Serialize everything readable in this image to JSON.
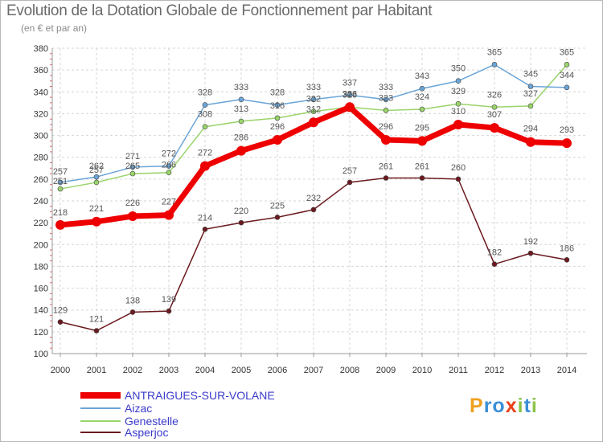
{
  "header": {
    "title": "Evolution de la Dotation Globale de Fonctionnement par Habitant",
    "subtitle": "(en € et par an)"
  },
  "chart_data": {
    "type": "line",
    "title": "Evolution de la Dotation Globale de Fonctionnement par Habitant",
    "subtitle": "(en € et par an)",
    "xlabel": "",
    "ylabel": "",
    "ylim": [
      100,
      380
    ],
    "y_ticks": [
      100,
      120,
      140,
      160,
      180,
      200,
      220,
      240,
      260,
      280,
      300,
      320,
      340,
      360,
      380
    ],
    "grid": true,
    "legend_position": "bottom-left",
    "categories": [
      "2000",
      "2001",
      "2002",
      "2003",
      "2004",
      "2005",
      "2006",
      "2007",
      "2008",
      "2009",
      "2010",
      "2011",
      "2012",
      "2013",
      "2014"
    ],
    "series": [
      {
        "name": "Asperjoc",
        "color": "#6b1a1f",
        "values": [
          129,
          121,
          138,
          139,
          214,
          220,
          225,
          232,
          257,
          261,
          261,
          260,
          182,
          192,
          186
        ]
      },
      {
        "name": "Genestelle",
        "color": "#99d46a",
        "values": [
          251,
          257,
          265,
          266,
          308,
          313,
          316,
          322,
          326,
          323,
          324,
          329,
          326,
          327,
          365
        ]
      },
      {
        "name": "Aizac",
        "color": "#6aa5d8",
        "values": [
          257,
          262,
          271,
          272,
          328,
          333,
          328,
          333,
          337,
          333,
          343,
          350,
          365,
          345,
          344
        ]
      },
      {
        "name": "ANTRAIGUES-SUR-VOLANE",
        "color": "#ee0000",
        "values": [
          218,
          221,
          226,
          227,
          272,
          286,
          296,
          312,
          326,
          296,
          295,
          310,
          307,
          294,
          293
        ]
      }
    ]
  },
  "legend": {
    "items": [
      {
        "label": "ANTRAIGUES-SUR-VOLANE",
        "color": "#ee0000"
      },
      {
        "label": "Aizac",
        "color": "#6aa5d8"
      },
      {
        "label": "Genestelle",
        "color": "#99d46a"
      },
      {
        "label": "Asperjoc",
        "color": "#6b1a1f"
      }
    ]
  },
  "logo": {
    "text": "Proxiti",
    "letters": [
      {
        "ch": "P",
        "color": "#f0a020"
      },
      {
        "ch": "r",
        "color": "#3b8fd6"
      },
      {
        "ch": "o",
        "color": "#3b8fd6"
      },
      {
        "ch": "x",
        "color": "#e8401c"
      },
      {
        "ch": "i",
        "color": "#8bc34a"
      },
      {
        "ch": "t",
        "color": "#3b8fd6"
      },
      {
        "ch": "i",
        "color": "#8bc34a"
      }
    ]
  }
}
